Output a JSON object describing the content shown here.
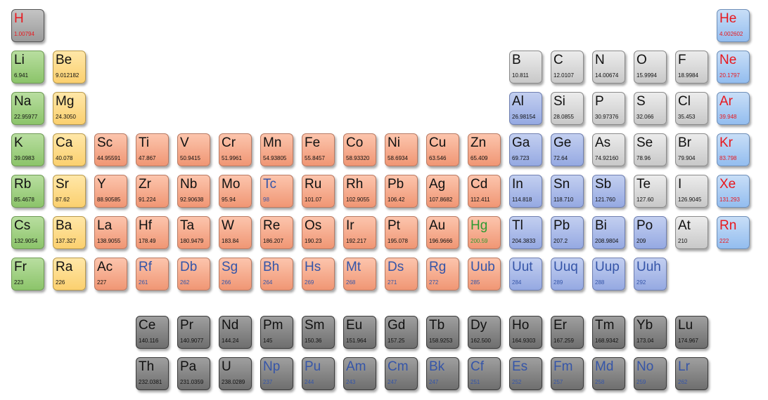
{
  "colors": {
    "alkali": "#8cc46a",
    "alkaline": "#fbd06f",
    "transition": "#f09674",
    "poor": "#95a9e2",
    "nonmetal": "#c8c8c8",
    "noble": "#93bdef",
    "hydrogen": "#9a9a9a",
    "rare": "#6e6e6e",
    "text_red": "#e8181e",
    "text_blue": "#3555a8",
    "text_green": "#2e9a30"
  },
  "elements": [
    {
      "symbol": "H",
      "mass": "1.00794",
      "group": 1,
      "period": 1,
      "category": "hydrogen",
      "text": "red"
    },
    {
      "symbol": "He",
      "mass": "4.002602",
      "group": 18,
      "period": 1,
      "category": "noble",
      "text": "red"
    },
    {
      "symbol": "Li",
      "mass": "6.941",
      "group": 1,
      "period": 2,
      "category": "alkali",
      "text": "black"
    },
    {
      "symbol": "Be",
      "mass": "9.012182",
      "group": 2,
      "period": 2,
      "category": "alkaline",
      "text": "black"
    },
    {
      "symbol": "B",
      "mass": "10.811",
      "group": 13,
      "period": 2,
      "category": "nonmetal",
      "text": "black"
    },
    {
      "symbol": "C",
      "mass": "12.0107",
      "group": 14,
      "period": 2,
      "category": "nonmetal",
      "text": "black"
    },
    {
      "symbol": "N",
      "mass": "14.00674",
      "group": 15,
      "period": 2,
      "category": "nonmetal",
      "text": "black"
    },
    {
      "symbol": "O",
      "mass": "15.9994",
      "group": 16,
      "period": 2,
      "category": "nonmetal",
      "text": "black"
    },
    {
      "symbol": "F",
      "mass": "18.9984",
      "group": 17,
      "period": 2,
      "category": "nonmetal",
      "text": "black"
    },
    {
      "symbol": "Ne",
      "mass": "20.1797",
      "group": 18,
      "period": 2,
      "category": "noble",
      "text": "red"
    },
    {
      "symbol": "Na",
      "mass": "22.95977",
      "group": 1,
      "period": 3,
      "category": "alkali",
      "text": "black"
    },
    {
      "symbol": "Mg",
      "mass": "24.3050",
      "group": 2,
      "period": 3,
      "category": "alkaline",
      "text": "black"
    },
    {
      "symbol": "Al",
      "mass": "26.98154",
      "group": 13,
      "period": 3,
      "category": "poor",
      "text": "black"
    },
    {
      "symbol": "Si",
      "mass": "28.0855",
      "group": 14,
      "period": 3,
      "category": "nonmetal",
      "text": "black"
    },
    {
      "symbol": "P",
      "mass": "30.97376",
      "group": 15,
      "period": 3,
      "category": "nonmetal",
      "text": "black"
    },
    {
      "symbol": "S",
      "mass": "32.066",
      "group": 16,
      "period": 3,
      "category": "nonmetal",
      "text": "black"
    },
    {
      "symbol": "Cl",
      "mass": "35.453",
      "group": 17,
      "period": 3,
      "category": "nonmetal",
      "text": "black"
    },
    {
      "symbol": "Ar",
      "mass": "39.948",
      "group": 18,
      "period": 3,
      "category": "noble",
      "text": "red"
    },
    {
      "symbol": "K",
      "mass": "39.0983",
      "group": 1,
      "period": 4,
      "category": "alkali",
      "text": "black"
    },
    {
      "symbol": "Ca",
      "mass": "40.078",
      "group": 2,
      "period": 4,
      "category": "alkaline",
      "text": "black"
    },
    {
      "symbol": "Sc",
      "mass": "44.95591",
      "group": 3,
      "period": 4,
      "category": "transition",
      "text": "black"
    },
    {
      "symbol": "Ti",
      "mass": "47.867",
      "group": 4,
      "period": 4,
      "category": "transition",
      "text": "black"
    },
    {
      "symbol": "V",
      "mass": "50.9415",
      "group": 5,
      "period": 4,
      "category": "transition",
      "text": "black"
    },
    {
      "symbol": "Cr",
      "mass": "51.9961",
      "group": 6,
      "period": 4,
      "category": "transition",
      "text": "black"
    },
    {
      "symbol": "Mn",
      "mass": "54.93805",
      "group": 7,
      "period": 4,
      "category": "transition",
      "text": "black"
    },
    {
      "symbol": "Fe",
      "mass": "55.8457",
      "group": 8,
      "period": 4,
      "category": "transition",
      "text": "black"
    },
    {
      "symbol": "Co",
      "mass": "58.93320",
      "group": 9,
      "period": 4,
      "category": "transition",
      "text": "black"
    },
    {
      "symbol": "Ni",
      "mass": "58.6934",
      "group": 10,
      "period": 4,
      "category": "transition",
      "text": "black"
    },
    {
      "symbol": "Cu",
      "mass": "63.546",
      "group": 11,
      "period": 4,
      "category": "transition",
      "text": "black"
    },
    {
      "symbol": "Zn",
      "mass": "65.409",
      "group": 12,
      "period": 4,
      "category": "transition",
      "text": "black"
    },
    {
      "symbol": "Ga",
      "mass": "69.723",
      "group": 13,
      "period": 4,
      "category": "poor",
      "text": "black"
    },
    {
      "symbol": "Ge",
      "mass": "72.64",
      "group": 14,
      "period": 4,
      "category": "poor",
      "text": "black"
    },
    {
      "symbol": "As",
      "mass": "74.92160",
      "group": 15,
      "period": 4,
      "category": "nonmetal",
      "text": "black"
    },
    {
      "symbol": "Se",
      "mass": "78.96",
      "group": 16,
      "period": 4,
      "category": "nonmetal",
      "text": "black"
    },
    {
      "symbol": "Br",
      "mass": "79.904",
      "group": 17,
      "period": 4,
      "category": "nonmetal",
      "text": "black"
    },
    {
      "symbol": "Kr",
      "mass": "83.798",
      "group": 18,
      "period": 4,
      "category": "noble",
      "text": "red"
    },
    {
      "symbol": "Rb",
      "mass": "85.4678",
      "group": 1,
      "period": 5,
      "category": "alkali",
      "text": "black"
    },
    {
      "symbol": "Sr",
      "mass": "87.62",
      "group": 2,
      "period": 5,
      "category": "alkaline",
      "text": "black"
    },
    {
      "symbol": "Y",
      "mass": "88.90585",
      "group": 3,
      "period": 5,
      "category": "transition",
      "text": "black"
    },
    {
      "symbol": "Zr",
      "mass": "91.224",
      "group": 4,
      "period": 5,
      "category": "transition",
      "text": "black"
    },
    {
      "symbol": "Nb",
      "mass": "92.90638",
      "group": 5,
      "period": 5,
      "category": "transition",
      "text": "black"
    },
    {
      "symbol": "Mo",
      "mass": "95.94",
      "group": 6,
      "period": 5,
      "category": "transition",
      "text": "black"
    },
    {
      "symbol": "Tc",
      "mass": "98",
      "group": 7,
      "period": 5,
      "category": "transition",
      "text": "blue"
    },
    {
      "symbol": "Ru",
      "mass": "101.07",
      "group": 8,
      "period": 5,
      "category": "transition",
      "text": "black"
    },
    {
      "symbol": "Rh",
      "mass": "102.9055",
      "group": 9,
      "period": 5,
      "category": "transition",
      "text": "black"
    },
    {
      "symbol": "Pb",
      "mass": "106.42",
      "group": 10,
      "period": 5,
      "category": "transition",
      "text": "black"
    },
    {
      "symbol": "Ag",
      "mass": "107.8682",
      "group": 11,
      "period": 5,
      "category": "transition",
      "text": "black"
    },
    {
      "symbol": "Cd",
      "mass": "112.411",
      "group": 12,
      "period": 5,
      "category": "transition",
      "text": "black"
    },
    {
      "symbol": "In",
      "mass": "114.818",
      "group": 13,
      "period": 5,
      "category": "poor",
      "text": "black"
    },
    {
      "symbol": "Sn",
      "mass": "118.710",
      "group": 14,
      "period": 5,
      "category": "poor",
      "text": "black"
    },
    {
      "symbol": "Sb",
      "mass": "121.760",
      "group": 15,
      "period": 5,
      "category": "poor",
      "text": "black"
    },
    {
      "symbol": "Te",
      "mass": "127.60",
      "group": 16,
      "period": 5,
      "category": "nonmetal",
      "text": "black"
    },
    {
      "symbol": "I",
      "mass": "126.9045",
      "group": 17,
      "period": 5,
      "category": "nonmetal",
      "text": "black"
    },
    {
      "symbol": "Xe",
      "mass": "131.293",
      "group": 18,
      "period": 5,
      "category": "noble",
      "text": "red"
    },
    {
      "symbol": "Cs",
      "mass": "132.9054",
      "group": 1,
      "period": 6,
      "category": "alkali",
      "text": "black"
    },
    {
      "symbol": "Ba",
      "mass": "137.327",
      "group": 2,
      "period": 6,
      "category": "alkaline",
      "text": "black"
    },
    {
      "symbol": "La",
      "mass": "138.9055",
      "group": 3,
      "period": 6,
      "category": "transition",
      "text": "black"
    },
    {
      "symbol": "Hf",
      "mass": "178.49",
      "group": 4,
      "period": 6,
      "category": "transition",
      "text": "black"
    },
    {
      "symbol": "Ta",
      "mass": "180.9479",
      "group": 5,
      "period": 6,
      "category": "transition",
      "text": "black"
    },
    {
      "symbol": "W",
      "mass": "183.84",
      "group": 6,
      "period": 6,
      "category": "transition",
      "text": "black"
    },
    {
      "symbol": "Re",
      "mass": "186.207",
      "group": 7,
      "period": 6,
      "category": "transition",
      "text": "black"
    },
    {
      "symbol": "Os",
      "mass": "190.23",
      "group": 8,
      "period": 6,
      "category": "transition",
      "text": "black"
    },
    {
      "symbol": "Ir",
      "mass": "192.217",
      "group": 9,
      "period": 6,
      "category": "transition",
      "text": "black"
    },
    {
      "symbol": "Pt",
      "mass": "195.078",
      "group": 10,
      "period": 6,
      "category": "transition",
      "text": "black"
    },
    {
      "symbol": "Au",
      "mass": "196.9666",
      "group": 11,
      "period": 6,
      "category": "transition",
      "text": "black"
    },
    {
      "symbol": "Hg",
      "mass": "200.59",
      "group": 12,
      "period": 6,
      "category": "transition",
      "text": "green"
    },
    {
      "symbol": "Tl",
      "mass": "204.3833",
      "group": 13,
      "period": 6,
      "category": "poor",
      "text": "black"
    },
    {
      "symbol": "Pb",
      "mass": "207.2",
      "group": 14,
      "period": 6,
      "category": "poor",
      "text": "black"
    },
    {
      "symbol": "Bi",
      "mass": "208.9804",
      "group": 15,
      "period": 6,
      "category": "poor",
      "text": "black"
    },
    {
      "symbol": "Po",
      "mass": "209",
      "group": 16,
      "period": 6,
      "category": "poor",
      "text": "black"
    },
    {
      "symbol": "At",
      "mass": "210",
      "group": 17,
      "period": 6,
      "category": "nonmetal",
      "text": "black"
    },
    {
      "symbol": "Rn",
      "mass": "222",
      "group": 18,
      "period": 6,
      "category": "noble",
      "text": "red"
    },
    {
      "symbol": "Fr",
      "mass": "223",
      "group": 1,
      "period": 7,
      "category": "alkali",
      "text": "black"
    },
    {
      "symbol": "Ra",
      "mass": "226",
      "group": 2,
      "period": 7,
      "category": "alkaline",
      "text": "black"
    },
    {
      "symbol": "Ac",
      "mass": "227",
      "group": 3,
      "period": 7,
      "category": "transition",
      "text": "black"
    },
    {
      "symbol": "Rf",
      "mass": "261",
      "group": 4,
      "period": 7,
      "category": "transition",
      "text": "blue"
    },
    {
      "symbol": "Db",
      "mass": "262",
      "group": 5,
      "period": 7,
      "category": "transition",
      "text": "blue"
    },
    {
      "symbol": "Sg",
      "mass": "266",
      "group": 6,
      "period": 7,
      "category": "transition",
      "text": "blue"
    },
    {
      "symbol": "Bh",
      "mass": "264",
      "group": 7,
      "period": 7,
      "category": "transition",
      "text": "blue"
    },
    {
      "symbol": "Hs",
      "mass": "269",
      "group": 8,
      "period": 7,
      "category": "transition",
      "text": "blue"
    },
    {
      "symbol": "Mt",
      "mass": "268",
      "group": 9,
      "period": 7,
      "category": "transition",
      "text": "blue"
    },
    {
      "symbol": "Ds",
      "mass": "271",
      "group": 10,
      "period": 7,
      "category": "transition",
      "text": "blue"
    },
    {
      "symbol": "Rg",
      "mass": "272",
      "group": 11,
      "period": 7,
      "category": "transition",
      "text": "blue"
    },
    {
      "symbol": "Uub",
      "mass": "285",
      "group": 12,
      "period": 7,
      "category": "transition",
      "text": "blue"
    },
    {
      "symbol": "Uut",
      "mass": "284",
      "group": 13,
      "period": 7,
      "category": "poor",
      "text": "blue"
    },
    {
      "symbol": "Uuq",
      "mass": "289",
      "group": 14,
      "period": 7,
      "category": "poor",
      "text": "blue"
    },
    {
      "symbol": "Uup",
      "mass": "288",
      "group": 15,
      "period": 7,
      "category": "poor",
      "text": "blue"
    },
    {
      "symbol": "Uuh",
      "mass": "292",
      "group": 16,
      "period": 7,
      "category": "poor",
      "text": "blue"
    },
    {
      "symbol": "Ce",
      "mass": "140.116",
      "group": 4,
      "period": 9,
      "category": "rare",
      "text": "black"
    },
    {
      "symbol": "Pr",
      "mass": "140.9077",
      "group": 5,
      "period": 9,
      "category": "rare",
      "text": "black"
    },
    {
      "symbol": "Nd",
      "mass": "144.24",
      "group": 6,
      "period": 9,
      "category": "rare",
      "text": "black"
    },
    {
      "symbol": "Pm",
      "mass": "145",
      "group": 7,
      "period": 9,
      "category": "rare",
      "text": "black"
    },
    {
      "symbol": "Sm",
      "mass": "150.36",
      "group": 8,
      "period": 9,
      "category": "rare",
      "text": "black"
    },
    {
      "symbol": "Eu",
      "mass": "151.964",
      "group": 9,
      "period": 9,
      "category": "rare",
      "text": "black"
    },
    {
      "symbol": "Gd",
      "mass": "157.25",
      "group": 10,
      "period": 9,
      "category": "rare",
      "text": "black"
    },
    {
      "symbol": "Tb",
      "mass": "158.9253",
      "group": 11,
      "period": 9,
      "category": "rare",
      "text": "black"
    },
    {
      "symbol": "Dy",
      "mass": "162.500",
      "group": 12,
      "period": 9,
      "category": "rare",
      "text": "black"
    },
    {
      "symbol": "Ho",
      "mass": "164.9303",
      "group": 13,
      "period": 9,
      "category": "rare",
      "text": "black"
    },
    {
      "symbol": "Er",
      "mass": "167.259",
      "group": 14,
      "period": 9,
      "category": "rare",
      "text": "black"
    },
    {
      "symbol": "Tm",
      "mass": "168.9342",
      "group": 15,
      "period": 9,
      "category": "rare",
      "text": "black"
    },
    {
      "symbol": "Yb",
      "mass": "173.04",
      "group": 16,
      "period": 9,
      "category": "rare",
      "text": "black"
    },
    {
      "symbol": "Lu",
      "mass": "174.967",
      "group": 17,
      "period": 9,
      "category": "rare",
      "text": "black"
    },
    {
      "symbol": "Th",
      "mass": "232.0381",
      "group": 4,
      "period": 10,
      "category": "rare",
      "text": "black"
    },
    {
      "symbol": "Pa",
      "mass": "231.0359",
      "group": 5,
      "period": 10,
      "category": "rare",
      "text": "black"
    },
    {
      "symbol": "U",
      "mass": "238.0289",
      "group": 6,
      "period": 10,
      "category": "rare",
      "text": "black"
    },
    {
      "symbol": "Np",
      "mass": "237",
      "group": 7,
      "period": 10,
      "category": "rare",
      "text": "blue"
    },
    {
      "symbol": "Pu",
      "mass": "244",
      "group": 8,
      "period": 10,
      "category": "rare",
      "text": "blue"
    },
    {
      "symbol": "Am",
      "mass": "243",
      "group": 9,
      "period": 10,
      "category": "rare",
      "text": "blue"
    },
    {
      "symbol": "Cm",
      "mass": "247",
      "group": 10,
      "period": 10,
      "category": "rare",
      "text": "blue"
    },
    {
      "symbol": "Bk",
      "mass": "247",
      "group": 11,
      "period": 10,
      "category": "rare",
      "text": "blue"
    },
    {
      "symbol": "Cf",
      "mass": "251",
      "group": 12,
      "period": 10,
      "category": "rare",
      "text": "blue"
    },
    {
      "symbol": "Es",
      "mass": "252",
      "group": 13,
      "period": 10,
      "category": "rare",
      "text": "blue"
    },
    {
      "symbol": "Fm",
      "mass": "257",
      "group": 14,
      "period": 10,
      "category": "rare",
      "text": "blue"
    },
    {
      "symbol": "Md",
      "mass": "258",
      "group": 15,
      "period": 10,
      "category": "rare",
      "text": "blue"
    },
    {
      "symbol": "No",
      "mass": "259",
      "group": 16,
      "period": 10,
      "category": "rare",
      "text": "blue"
    },
    {
      "symbol": "Lr",
      "mass": "262",
      "group": 17,
      "period": 10,
      "category": "rare",
      "text": "blue"
    }
  ]
}
